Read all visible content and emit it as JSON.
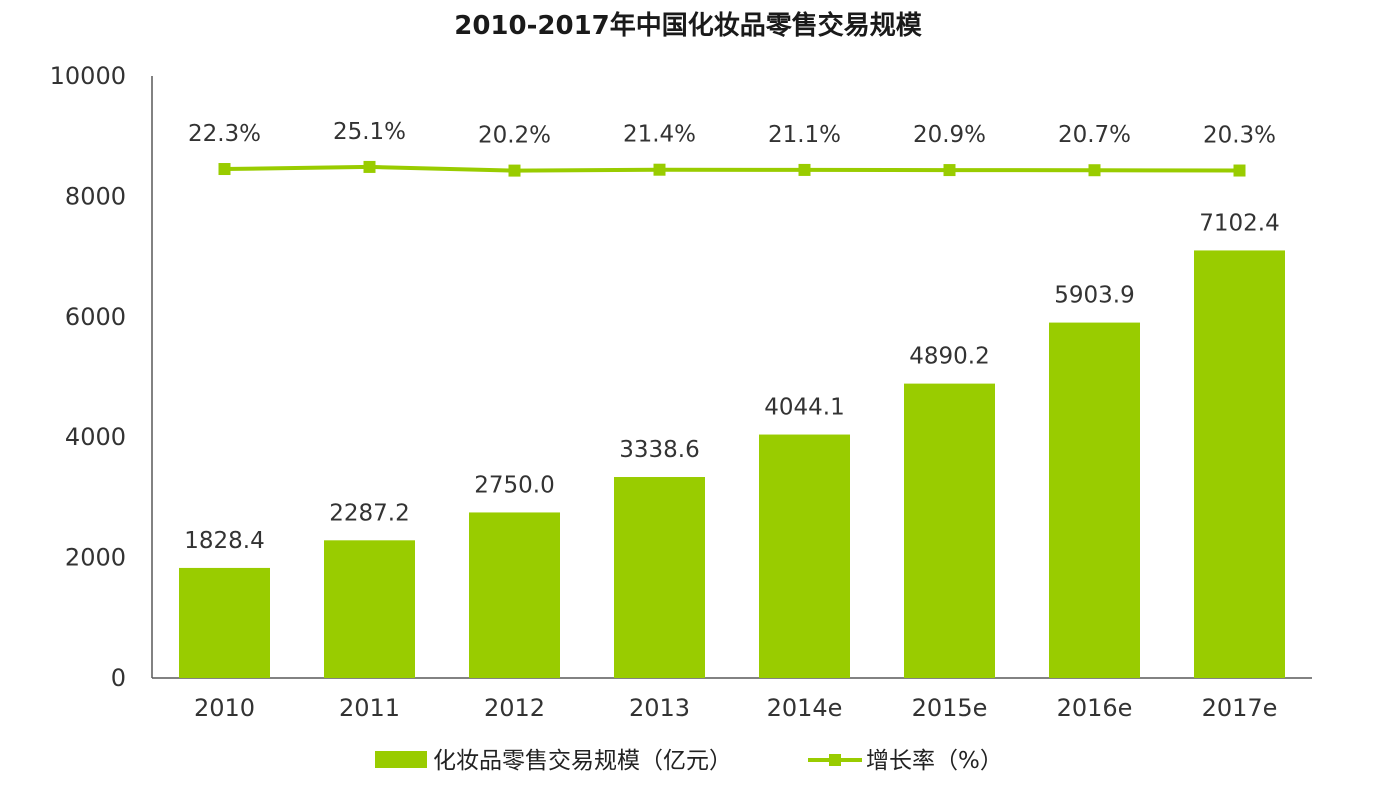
{
  "chart_data": {
    "type": "bar",
    "title": "2010-2017年中国化妆品零售交易规模",
    "categories": [
      "2010",
      "2011",
      "2012",
      "2013",
      "2014e",
      "2015e",
      "2016e",
      "2017e"
    ],
    "ylim": [
      0,
      10000
    ],
    "yticks": [
      "0",
      "2000",
      "4000",
      "6000",
      "8000",
      "10000"
    ],
    "colors": {
      "bar": "#99cc00",
      "line": "#99cc00"
    },
    "legend_position": "bottom",
    "grid": false,
    "series": [
      {
        "name": "化妆品零售交易规模（亿元）",
        "type": "bar",
        "values": [
          1828.4,
          2287.2,
          2750.0,
          3338.6,
          4044.1,
          4890.2,
          5903.9,
          7102.4
        ],
        "labels": [
          "1828.4",
          "2287.2",
          "2750.0",
          "3338.6",
          "4044.1",
          "4890.2",
          "5903.9",
          "7102.4"
        ]
      },
      {
        "name": "增长率（%）",
        "type": "line",
        "values": [
          22.3,
          25.1,
          20.2,
          21.4,
          21.1,
          20.9,
          20.7,
          20.3
        ],
        "labels": [
          "22.3%",
          "25.1%",
          "20.2%",
          "21.4%",
          "21.1%",
          "20.9%",
          "20.7%",
          "20.3%"
        ]
      }
    ]
  }
}
